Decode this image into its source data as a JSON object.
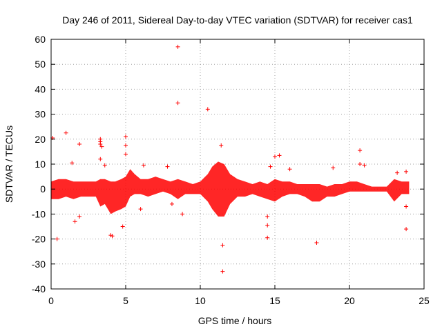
{
  "chart_data": {
    "type": "scatter",
    "title": "Day 246 of 2011, Sidereal Day-to-day VTEC variation (SDTVAR) for receiver cas1",
    "xlabel": "GPS time / hours",
    "ylabel": "SDTVAR / TECUs",
    "xlim": [
      0,
      25
    ],
    "ylim": [
      -40,
      60
    ],
    "xticks": [
      0,
      5,
      10,
      15,
      20,
      25
    ],
    "yticks": [
      -40,
      -30,
      -20,
      -10,
      0,
      10,
      20,
      30,
      40,
      50,
      60
    ],
    "grid": true,
    "marker": "+",
    "color": "#ff0000",
    "dense_band": [
      [
        0.0,
        -4,
        3
      ],
      [
        0.5,
        -4,
        4
      ],
      [
        1.0,
        -3,
        4
      ],
      [
        1.5,
        -4,
        3
      ],
      [
        2.0,
        -3,
        3
      ],
      [
        2.5,
        -3,
        3
      ],
      [
        3.0,
        -3,
        3
      ],
      [
        3.3,
        -7,
        4
      ],
      [
        3.6,
        -6,
        4
      ],
      [
        4.0,
        -10,
        3
      ],
      [
        4.3,
        -9,
        3
      ],
      [
        4.7,
        -8,
        4
      ],
      [
        5.0,
        -7,
        5
      ],
      [
        5.3,
        -3,
        8
      ],
      [
        5.6,
        -2,
        6
      ],
      [
        6.0,
        -2,
        4
      ],
      [
        6.5,
        -3,
        4
      ],
      [
        7.0,
        -2,
        5
      ],
      [
        7.5,
        -1,
        4
      ],
      [
        8.0,
        -2,
        3
      ],
      [
        8.5,
        -4,
        4
      ],
      [
        9.0,
        -2,
        3
      ],
      [
        9.5,
        -2,
        2
      ],
      [
        10.0,
        -2,
        3
      ],
      [
        10.5,
        -5,
        6
      ],
      [
        10.8,
        -8,
        9
      ],
      [
        11.2,
        -11,
        11
      ],
      [
        11.6,
        -11,
        10
      ],
      [
        12.0,
        -6,
        6
      ],
      [
        12.5,
        -3,
        4
      ],
      [
        13.0,
        -3,
        3
      ],
      [
        13.5,
        -2,
        2
      ],
      [
        14.0,
        -3,
        3
      ],
      [
        14.5,
        -4,
        2
      ],
      [
        15.0,
        -5,
        4
      ],
      [
        15.5,
        -3,
        3
      ],
      [
        16.0,
        -2,
        3
      ],
      [
        16.5,
        -2,
        2
      ],
      [
        17.0,
        -3,
        2
      ],
      [
        17.5,
        -5,
        2
      ],
      [
        18.0,
        -5,
        2
      ],
      [
        18.5,
        -3,
        1
      ],
      [
        19.0,
        -3,
        2
      ],
      [
        19.5,
        -2,
        2
      ],
      [
        20.0,
        -1,
        3
      ],
      [
        20.5,
        -1,
        3
      ],
      [
        21.0,
        -1,
        2
      ],
      [
        21.5,
        -1,
        1
      ],
      [
        22.0,
        -1,
        1
      ],
      [
        22.5,
        -1,
        1
      ],
      [
        23.0,
        -5,
        4
      ],
      [
        23.5,
        -2,
        3
      ],
      [
        24.0,
        -2,
        3
      ]
    ],
    "outliers": [
      [
        0.1,
        20.5
      ],
      [
        0.4,
        -20
      ],
      [
        1.0,
        22.5
      ],
      [
        1.4,
        10.5
      ],
      [
        1.6,
        -13
      ],
      [
        1.9,
        18
      ],
      [
        1.9,
        -11
      ],
      [
        3.3,
        20
      ],
      [
        3.3,
        19
      ],
      [
        3.3,
        18
      ],
      [
        3.4,
        17
      ],
      [
        3.3,
        12
      ],
      [
        3.6,
        9.5
      ],
      [
        4.0,
        -18.5
      ],
      [
        4.1,
        -18.8
      ],
      [
        4.8,
        -15
      ],
      [
        5.0,
        21
      ],
      [
        5.0,
        17.5
      ],
      [
        5.0,
        14
      ],
      [
        6.0,
        -8
      ],
      [
        6.2,
        9.5
      ],
      [
        7.8,
        9
      ],
      [
        8.1,
        -6
      ],
      [
        8.5,
        57
      ],
      [
        8.5,
        34.5
      ],
      [
        8.8,
        -10
      ],
      [
        10.5,
        32
      ],
      [
        11.5,
        -22.5
      ],
      [
        11.5,
        -33
      ],
      [
        11.4,
        17.5
      ],
      [
        14.5,
        -14.5
      ],
      [
        14.5,
        -19.5
      ],
      [
        14.5,
        -11
      ],
      [
        14.7,
        9
      ],
      [
        15.0,
        13
      ],
      [
        15.3,
        13.5
      ],
      [
        16.0,
        8
      ],
      [
        17.8,
        -21.5
      ],
      [
        18.9,
        8.5
      ],
      [
        20.7,
        15.5
      ],
      [
        20.7,
        10
      ],
      [
        21.0,
        9.5
      ],
      [
        23.8,
        -16
      ],
      [
        23.8,
        -7
      ],
      [
        23.8,
        7
      ],
      [
        23.2,
        6.5
      ]
    ]
  }
}
